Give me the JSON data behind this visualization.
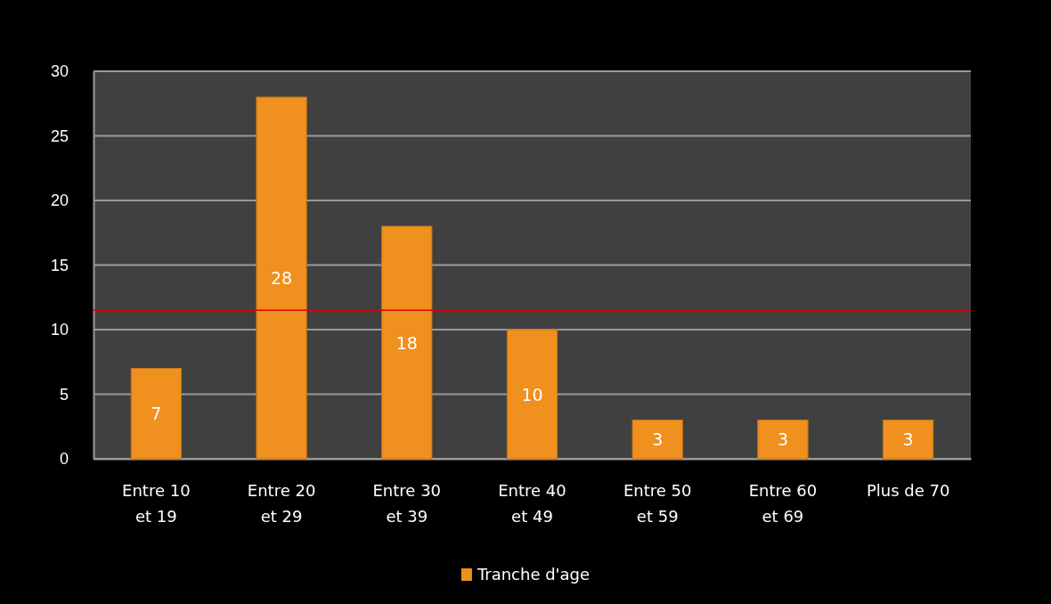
{
  "chart_data": {
    "type": "bar",
    "categories": [
      "Entre 10 et 19",
      "Entre 20 et 29",
      "Entre 30 et 39",
      "Entre 40 et 49",
      "Entre 50 et 59",
      "Entre 60 et 69",
      "Plus de 70"
    ],
    "series": [
      {
        "name": "Tranche d'age",
        "color": "#f0901e",
        "values": [
          7,
          28,
          18,
          10,
          3,
          3,
          3
        ]
      }
    ],
    "ylim": [
      0,
      30
    ],
    "yticks": [
      0,
      5,
      10,
      15,
      20,
      25,
      30
    ],
    "grid": "y",
    "legend": "bottom",
    "data_labels": true,
    "ref_lines": [
      {
        "axis": "y",
        "value": 11.5,
        "color": "#e00000"
      }
    ]
  }
}
